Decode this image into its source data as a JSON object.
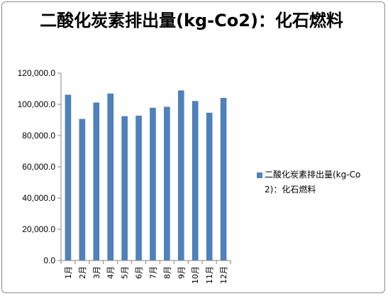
{
  "chart_data": {
    "type": "bar",
    "title": "二酸化炭素排出量(kg-Co2)：化石燃料",
    "categories": [
      "1月",
      "2月",
      "3月",
      "4月",
      "5月",
      "6月",
      "7月",
      "8月",
      "9月",
      "10月",
      "11月",
      "12月"
    ],
    "series": [
      {
        "name": "二酸化炭素排出量(kg-Co2)：化石燃料",
        "values": [
          106000,
          90500,
          101000,
          106800,
          92300,
          92600,
          97700,
          98300,
          108800,
          102000,
          94500,
          104000
        ]
      }
    ],
    "y_ticks": [
      "0.0",
      "20,000.0",
      "40,000.0",
      "60,000.0",
      "80,000.0",
      "100,000.0",
      "120,000.0"
    ],
    "ylim": [
      0,
      120000
    ],
    "xlabel": "",
    "ylabel": "",
    "grid": false,
    "legend_position": "right",
    "colors": {
      "bar": "#4f81bd",
      "bar_edge": "#3a6ea5",
      "axis": "#868686"
    }
  }
}
